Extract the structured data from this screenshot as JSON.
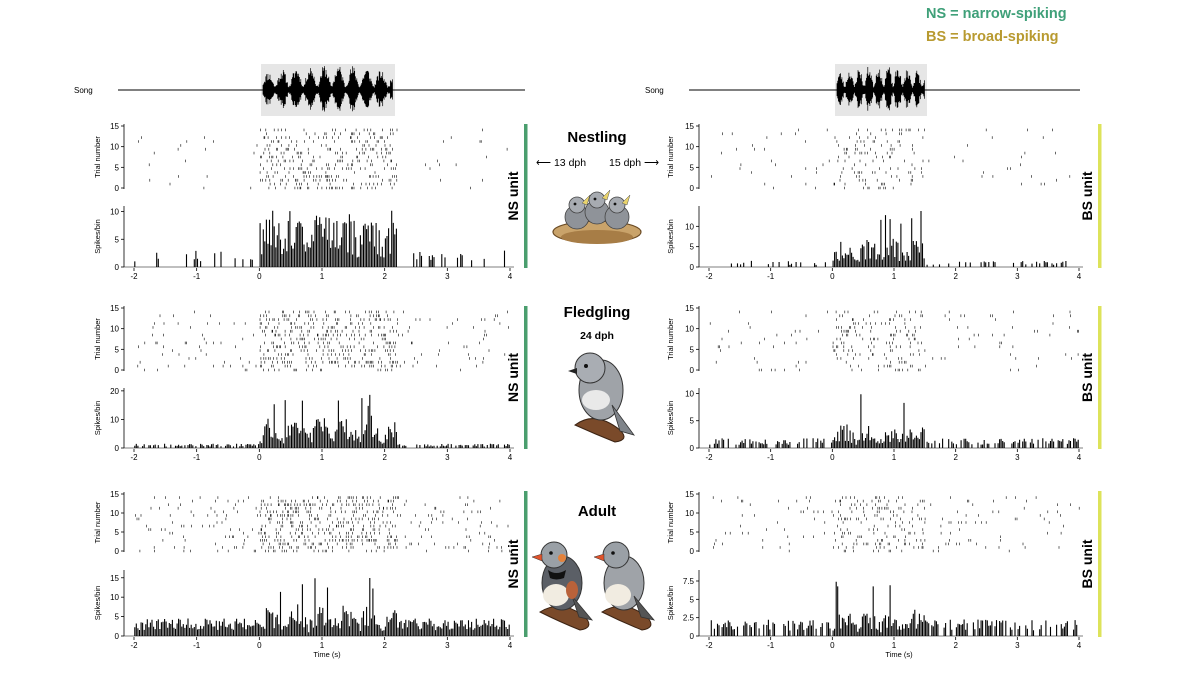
{
  "legend": {
    "ns": {
      "text": "NS = narrow-spiking",
      "color": "#3fa079"
    },
    "bs": {
      "text": "BS = broad-spiking",
      "color": "#b89a30"
    }
  },
  "song_label": "Song",
  "time_axis_label": "Time (s)",
  "raster_ylabel": "Trial number",
  "psth_ylabel": "Spikes/bin",
  "stages": [
    {
      "title": "Nestling",
      "left_age": "13 dph",
      "right_age": "15 dph",
      "age": ""
    },
    {
      "title": "Fledgling",
      "left_age": "",
      "right_age": "",
      "age": "24 dph"
    },
    {
      "title": "Adult",
      "left_age": "",
      "right_age": "",
      "age": ""
    }
  ],
  "bird_icons": [
    "nestling-birds-in-nest-icon",
    "fledgling-bird-icon",
    "adult-zebra-finch-pair-icon"
  ],
  "unit_bar_colors": {
    "NS": "#4a9e6e",
    "BS": "#dde35a"
  },
  "chart_data": [
    {
      "type": "raster+histogram",
      "column": "left",
      "row": "nestling",
      "unit": "NS unit",
      "xlim": [
        -2,
        4
      ],
      "xticks": [
        -2,
        -1,
        0,
        1,
        2,
        3,
        4
      ],
      "raster_yticks": [
        0,
        5,
        10,
        15
      ],
      "psth_yticks": [
        0,
        5,
        10
      ],
      "psth_ylim": [
        0,
        11
      ],
      "song_interval": [
        0,
        2.2
      ],
      "peak": 10.5,
      "baseline": 2.0,
      "response_gain": 1.0,
      "spontaneous": 0.12,
      "evoked": 0.55
    },
    {
      "type": "raster+histogram",
      "column": "right",
      "row": "nestling",
      "unit": "BS unit",
      "xlim": [
        -2,
        4
      ],
      "xticks": [
        -2,
        -1,
        0,
        1,
        2,
        3,
        4
      ],
      "raster_yticks": [
        0,
        5,
        10,
        15
      ],
      "psth_yticks": [
        0,
        5,
        10
      ],
      "psth_ylim": [
        0,
        15
      ],
      "song_interval": [
        0,
        1.5
      ],
      "peak": 14.0,
      "baseline": 1.0,
      "response_gain": 0.5,
      "spontaneous": 0.15,
      "evoked": 0.3
    },
    {
      "type": "raster+histogram",
      "column": "left",
      "row": "fledgling",
      "unit": "NS unit",
      "xlim": [
        -2,
        4
      ],
      "xticks": [
        -2,
        -1,
        0,
        1,
        2,
        3,
        4
      ],
      "raster_yticks": [
        0,
        5,
        10,
        15
      ],
      "psth_yticks": [
        0,
        10,
        20
      ],
      "psth_ylim": [
        0,
        21
      ],
      "song_interval": [
        0,
        2.2
      ],
      "peak": 19.0,
      "baseline": 1.0,
      "response_gain": 0.6,
      "spontaneous": 0.3,
      "evoked": 0.7
    },
    {
      "type": "raster+histogram",
      "column": "right",
      "row": "fledgling",
      "unit": "BS unit",
      "xlim": [
        -2,
        4
      ],
      "xticks": [
        -2,
        -1,
        0,
        1,
        2,
        3,
        4
      ],
      "raster_yticks": [
        0,
        5,
        10,
        15
      ],
      "psth_yticks": [
        0,
        5,
        10
      ],
      "psth_ylim": [
        0,
        11
      ],
      "song_interval": [
        0,
        1.5
      ],
      "peak": 10.0,
      "baseline": 1.2,
      "response_gain": 0.45,
      "spontaneous": 0.25,
      "evoked": 0.4
    },
    {
      "type": "raster+histogram",
      "column": "left",
      "row": "adult",
      "unit": "NS unit",
      "xlim": [
        -2,
        4
      ],
      "xticks": [
        -2,
        -1,
        0,
        1,
        2,
        3,
        4
      ],
      "raster_yticks": [
        0,
        5,
        10,
        15
      ],
      "psth_yticks": [
        0,
        5,
        10,
        15
      ],
      "psth_ylim": [
        0,
        17
      ],
      "song_interval": [
        0,
        2.2
      ],
      "peak": 15.0,
      "baseline": 3.0,
      "response_gain": 0.55,
      "spontaneous": 0.55,
      "evoked": 0.7
    },
    {
      "type": "raster+histogram",
      "column": "right",
      "row": "adult",
      "unit": "BS unit",
      "xlim": [
        -2,
        4
      ],
      "xticks": [
        -2,
        -1,
        0,
        1,
        2,
        3,
        4
      ],
      "raster_yticks": [
        0,
        5,
        10,
        15
      ],
      "psth_yticks": [
        0.0,
        2.5,
        5.0,
        7.5
      ],
      "psth_ylim": [
        0,
        9
      ],
      "song_interval": [
        0,
        1.5
      ],
      "peak": 8.5,
      "baseline": 1.5,
      "response_gain": 0.45,
      "spontaneous": 0.3,
      "evoked": 0.4
    }
  ]
}
